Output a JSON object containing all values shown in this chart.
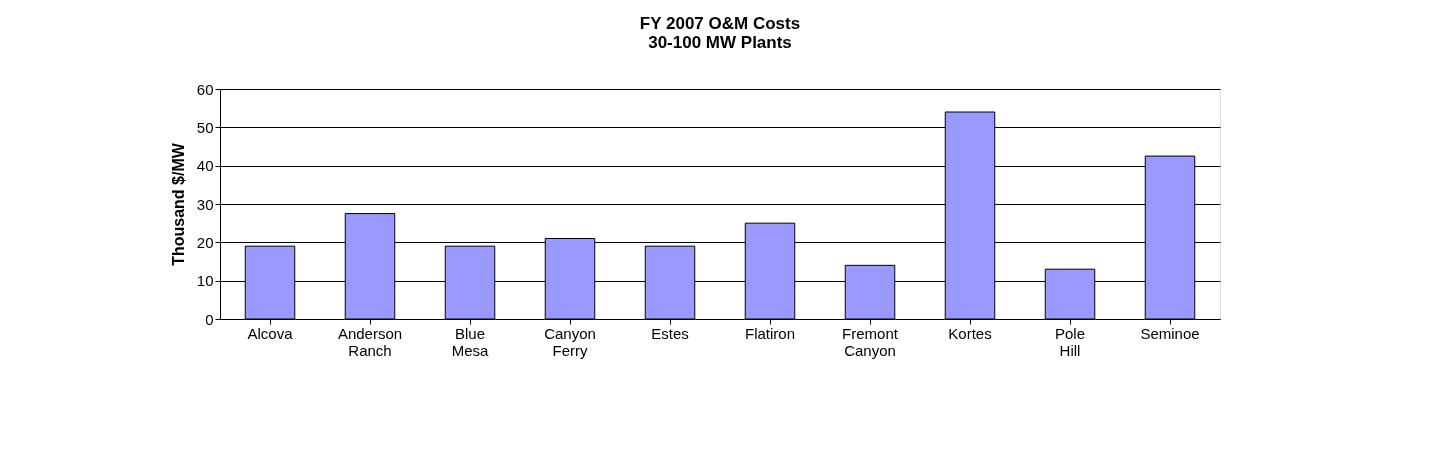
{
  "chart_data": {
    "type": "bar",
    "title": [
      "FY 2007 O&M Costs",
      "30-100 MW Plants"
    ],
    "ylabel": "Thousand $/MW",
    "categories": [
      "Alcova",
      "Anderson Ranch",
      "Blue Mesa",
      "Canyon Ferry",
      "Estes",
      "Flatiron",
      "Fremont Canyon",
      "Kortes",
      "Pole Hill",
      "Seminoe"
    ],
    "values": [
      19,
      27.5,
      19,
      21,
      19,
      25,
      14,
      54,
      13,
      42.5
    ],
    "color": "#9999ff",
    "ylim": [
      0,
      60
    ],
    "yticks": [
      0,
      10,
      20,
      30,
      40,
      50,
      60
    ],
    "grid": "y"
  }
}
